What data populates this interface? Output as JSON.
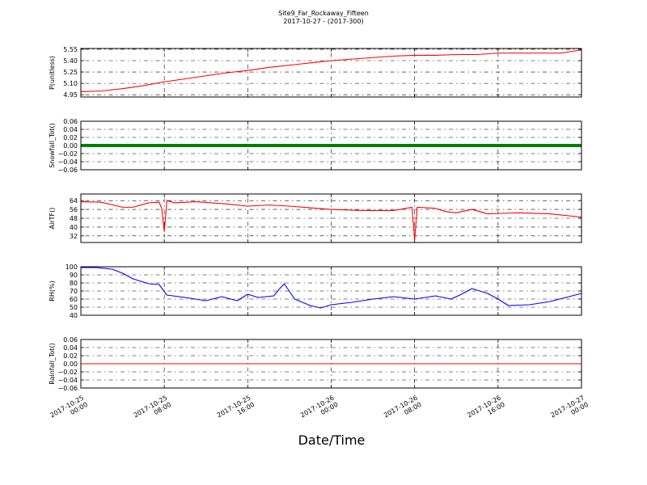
{
  "chart_data": {
    "type": "line",
    "title": "Site9_Far_Rockaway_Fifteen",
    "subtitle": "2017-10-27 - (2017-300)",
    "xlabel": "Date/Time",
    "xlim": [
      "2017-10-25 00:00",
      "2017-10-27 00:00"
    ],
    "x_ticks": [
      {
        "value": "2017-10-25 00:00",
        "line1": "2017-10-25",
        "line2": "00:00"
      },
      {
        "value": "2017-10-25 08:00",
        "line1": "2017-10-25",
        "line2": "08:00"
      },
      {
        "value": "2017-10-25 16:00",
        "line1": "2017-10-25",
        "line2": "16:00"
      },
      {
        "value": "2017-10-26 00:00",
        "line1": "2017-10-26",
        "line2": "00:00"
      },
      {
        "value": "2017-10-26 08:00",
        "line1": "2017-10-26",
        "line2": "08:00"
      },
      {
        "value": "2017-10-26 16:00",
        "line1": "2017-10-26",
        "line2": "16:00"
      },
      {
        "value": "2017-10-27 00:00",
        "line1": "2017-10-27",
        "line2": "00:00"
      }
    ],
    "grid": true,
    "panels": [
      {
        "ylabel": "P(unitless)",
        "ylim": [
          4.92,
          5.56
        ],
        "yticks": [
          "4.95",
          "5.10",
          "5.25",
          "5.40",
          "5.55"
        ],
        "color": "#ff0000",
        "series_points": [
          [
            "2017-10-25 00:00",
            4.99
          ],
          [
            "2017-10-25 02:00",
            5.0
          ],
          [
            "2017-10-25 04:00",
            5.03
          ],
          [
            "2017-10-25 06:00",
            5.07
          ],
          [
            "2017-10-25 08:00",
            5.12
          ],
          [
            "2017-10-25 10:00",
            5.16
          ],
          [
            "2017-10-25 12:00",
            5.2
          ],
          [
            "2017-10-25 14:00",
            5.24
          ],
          [
            "2017-10-25 16:00",
            5.27
          ],
          [
            "2017-10-25 18:00",
            5.31
          ],
          [
            "2017-10-25 20:00",
            5.34
          ],
          [
            "2017-10-25 22:00",
            5.37
          ],
          [
            "2017-10-26 00:00",
            5.4
          ],
          [
            "2017-10-26 02:00",
            5.42
          ],
          [
            "2017-10-26 04:00",
            5.44
          ],
          [
            "2017-10-26 06:00",
            5.46
          ],
          [
            "2017-10-26 08:00",
            5.47
          ],
          [
            "2017-10-26 10:00",
            5.47
          ],
          [
            "2017-10-26 12:00",
            5.48
          ],
          [
            "2017-10-26 14:00",
            5.48
          ],
          [
            "2017-10-26 16:00",
            5.5
          ],
          [
            "2017-10-26 18:00",
            5.5
          ],
          [
            "2017-10-26 20:00",
            5.5
          ],
          [
            "2017-10-26 22:00",
            5.5
          ],
          [
            "2017-10-27 00:00",
            5.54
          ]
        ]
      },
      {
        "ylabel": "Snowfall_Tot()",
        "ylim": [
          -0.06,
          0.06
        ],
        "yticks": [
          "−0.06",
          "−0.04",
          "−0.02",
          "0.00",
          "0.02",
          "0.04",
          "0.06"
        ],
        "color": "#008000",
        "marker": "dot",
        "series_points": [
          [
            "2017-10-25 00:00",
            0.0
          ],
          [
            "2017-10-27 00:00",
            0.0
          ]
        ]
      },
      {
        "ylabel": "AirTF()",
        "ylim": [
          26,
          70
        ],
        "yticks": [
          "32",
          "40",
          "48",
          "56",
          "64"
        ],
        "color": "#ff0000",
        "series_points": [
          [
            "2017-10-25 00:00",
            63
          ],
          [
            "2017-10-25 02:00",
            62.5
          ],
          [
            "2017-10-25 04:00",
            58
          ],
          [
            "2017-10-25 05:00",
            58
          ],
          [
            "2017-10-25 06:30",
            62
          ],
          [
            "2017-10-25 07:30",
            62.5
          ],
          [
            "2017-10-25 07:45",
            57
          ],
          [
            "2017-10-25 08:00",
            36
          ],
          [
            "2017-10-25 08:15",
            64
          ],
          [
            "2017-10-25 09:00",
            62
          ],
          [
            "2017-10-25 11:00",
            63
          ],
          [
            "2017-10-25 14:00",
            61
          ],
          [
            "2017-10-25 16:00",
            59
          ],
          [
            "2017-10-25 18:00",
            60
          ],
          [
            "2017-10-25 20:00",
            59
          ],
          [
            "2017-10-25 22:00",
            57.5
          ],
          [
            "2017-10-26 00:00",
            56
          ],
          [
            "2017-10-26 03:00",
            55
          ],
          [
            "2017-10-26 06:00",
            55
          ],
          [
            "2017-10-26 07:45",
            58
          ],
          [
            "2017-10-26 08:00",
            28
          ],
          [
            "2017-10-26 08:15",
            58
          ],
          [
            "2017-10-26 10:00",
            57
          ],
          [
            "2017-10-26 11:00",
            54
          ],
          [
            "2017-10-26 12:00",
            53
          ],
          [
            "2017-10-26 13:30",
            56
          ],
          [
            "2017-10-26 15:00",
            52
          ],
          [
            "2017-10-26 18:00",
            53
          ],
          [
            "2017-10-26 21:00",
            52
          ],
          [
            "2017-10-27 00:00",
            49
          ]
        ]
      },
      {
        "ylabel": "RH(%)",
        "ylim": [
          40,
          100
        ],
        "yticks": [
          "40",
          "50",
          "60",
          "70",
          "80",
          "90",
          "100"
        ],
        "color": "#0000ff",
        "series_points": [
          [
            "2017-10-25 00:00",
            99
          ],
          [
            "2017-10-25 01:30",
            99
          ],
          [
            "2017-10-25 03:00",
            97
          ],
          [
            "2017-10-25 04:00",
            92
          ],
          [
            "2017-10-25 05:00",
            85
          ],
          [
            "2017-10-25 06:30",
            79
          ],
          [
            "2017-10-25 07:30",
            78
          ],
          [
            "2017-10-25 08:15",
            65
          ],
          [
            "2017-10-25 10:00",
            62
          ],
          [
            "2017-10-25 12:00",
            58
          ],
          [
            "2017-10-25 13:30",
            63
          ],
          [
            "2017-10-25 15:00",
            58
          ],
          [
            "2017-10-25 16:00",
            66
          ],
          [
            "2017-10-25 17:00",
            62
          ],
          [
            "2017-10-25 18:30",
            64
          ],
          [
            "2017-10-25 19:00",
            72
          ],
          [
            "2017-10-25 19:30",
            79
          ],
          [
            "2017-10-25 20:30",
            60
          ],
          [
            "2017-10-25 22:00",
            52
          ],
          [
            "2017-10-25 23:00",
            49
          ],
          [
            "2017-10-26 00:00",
            53
          ],
          [
            "2017-10-26 02:00",
            56
          ],
          [
            "2017-10-26 04:00",
            60
          ],
          [
            "2017-10-26 06:00",
            63
          ],
          [
            "2017-10-26 08:00",
            60
          ],
          [
            "2017-10-26 10:00",
            64
          ],
          [
            "2017-10-26 11:30",
            60
          ],
          [
            "2017-10-26 12:30",
            66
          ],
          [
            "2017-10-26 13:30",
            73
          ],
          [
            "2017-10-26 15:00",
            67
          ],
          [
            "2017-10-26 16:00",
            60
          ],
          [
            "2017-10-26 17:00",
            52
          ],
          [
            "2017-10-26 19:00",
            53
          ],
          [
            "2017-10-26 21:00",
            57
          ],
          [
            "2017-10-27 00:00",
            67
          ]
        ]
      },
      {
        "ylabel": "Rainfall_Tot()",
        "ylim": [
          -0.06,
          0.06
        ],
        "yticks": [
          "−0.06",
          "−0.04",
          "−0.02",
          "0.00",
          "0.02",
          "0.04",
          "0.06"
        ],
        "color": "#ff0000",
        "series_points": [
          [
            "2017-10-25 00:00",
            0.0
          ],
          [
            "2017-10-27 00:00",
            0.0
          ]
        ]
      }
    ]
  }
}
